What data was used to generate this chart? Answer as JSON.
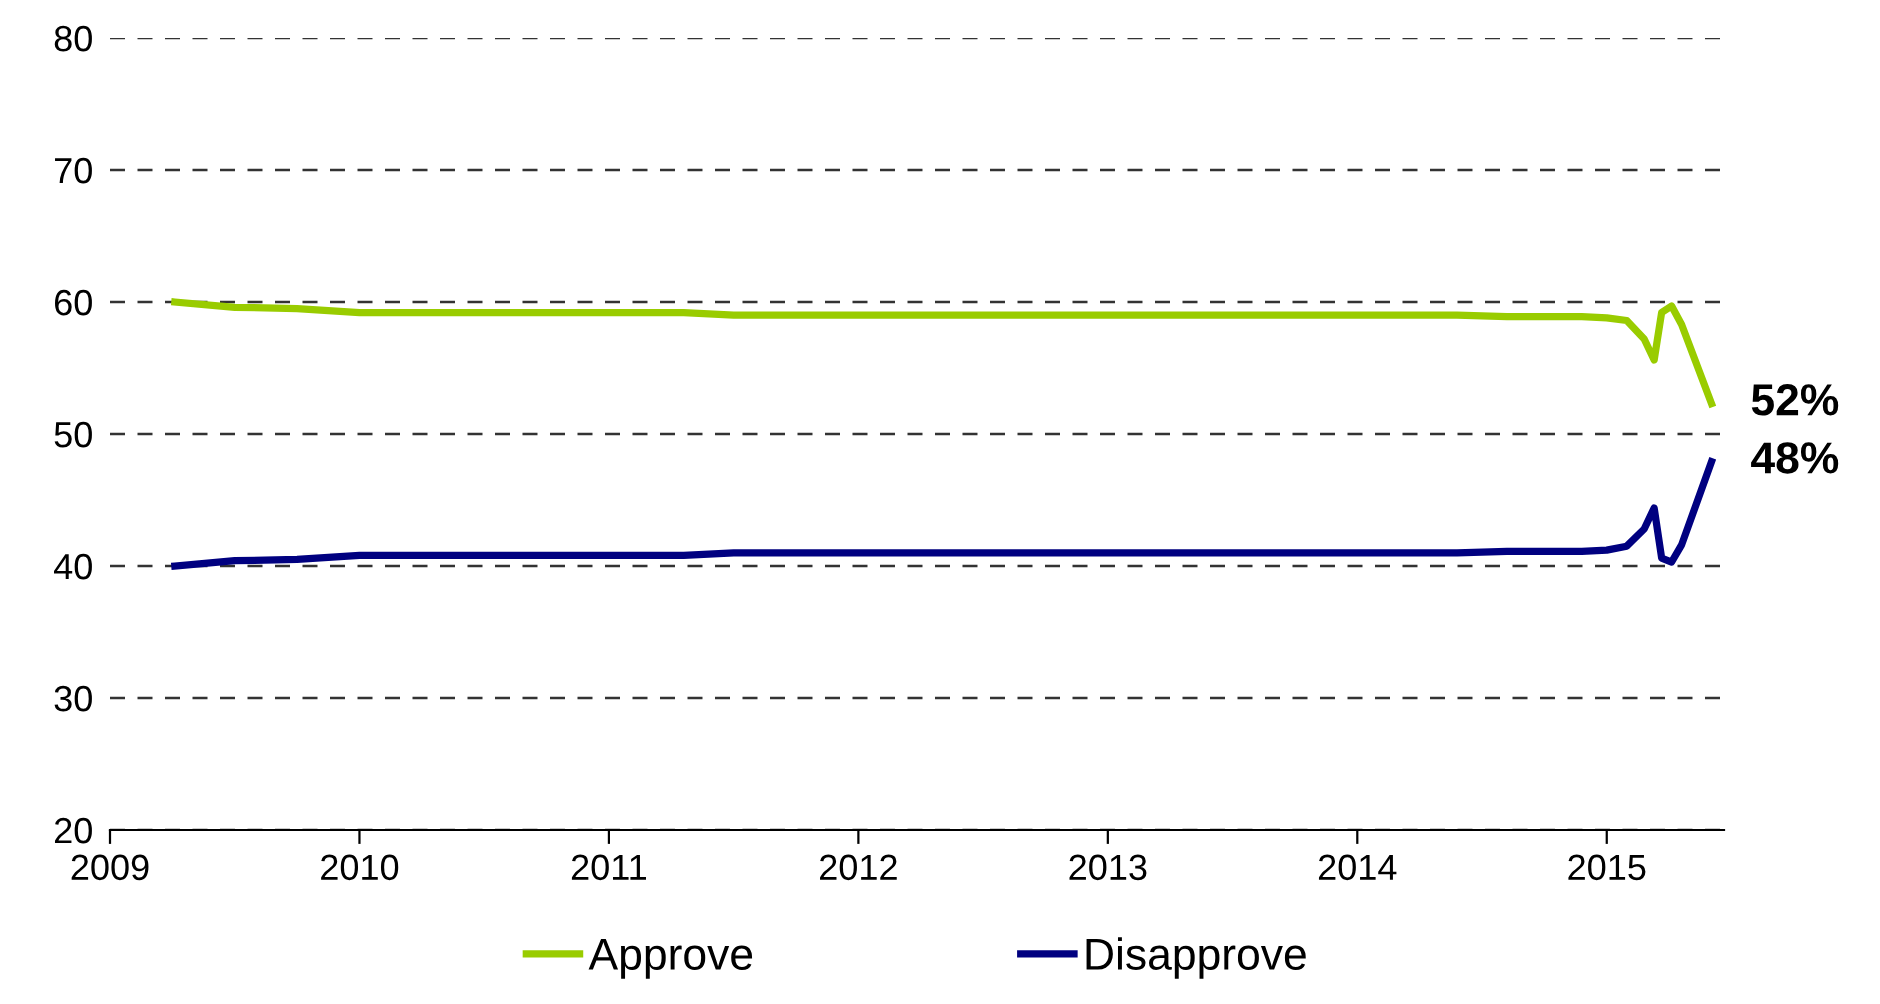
{
  "chart_data": {
    "type": "line",
    "x": [
      2009.26,
      2009.5,
      2009.75,
      2010.0,
      2011.0,
      2011.3,
      2011.5,
      2012.5,
      2013.5,
      2014.4,
      2014.6,
      2014.9,
      2015.0,
      2015.08,
      2015.15,
      2015.19,
      2015.22,
      2015.26,
      2015.3,
      2015.42
    ],
    "series": [
      {
        "name": "Approve",
        "color": "#99cc00",
        "values": [
          60.0,
          59.6,
          59.5,
          59.2,
          59.2,
          59.2,
          59.0,
          59.0,
          59.0,
          59.0,
          58.9,
          58.9,
          58.8,
          58.6,
          57.2,
          55.6,
          59.2,
          59.7,
          58.3,
          52.3
        ]
      },
      {
        "name": "Disapprove",
        "color": "#000080",
        "values": [
          40.0,
          40.4,
          40.5,
          40.8,
          40.8,
          40.8,
          41.0,
          41.0,
          41.0,
          41.0,
          41.1,
          41.1,
          41.2,
          41.5,
          42.8,
          44.4,
          40.6,
          40.3,
          41.6,
          47.9
        ]
      }
    ],
    "xlim": [
      2009,
      2015.47
    ],
    "xticks": [
      2009,
      2010,
      2011,
      2012,
      2013,
      2014,
      2015
    ],
    "ylim": [
      20,
      80
    ],
    "yticks": [
      20,
      30,
      40,
      50,
      60,
      70,
      80
    ],
    "grid": "y",
    "legend": "bottom",
    "marker": "none",
    "line_style": "solid",
    "annotations": [
      {
        "text": "52%",
        "x": 2015.42,
        "y": 52.3
      },
      {
        "text": "48%",
        "x": 2015.42,
        "y": 47.9
      }
    ]
  }
}
